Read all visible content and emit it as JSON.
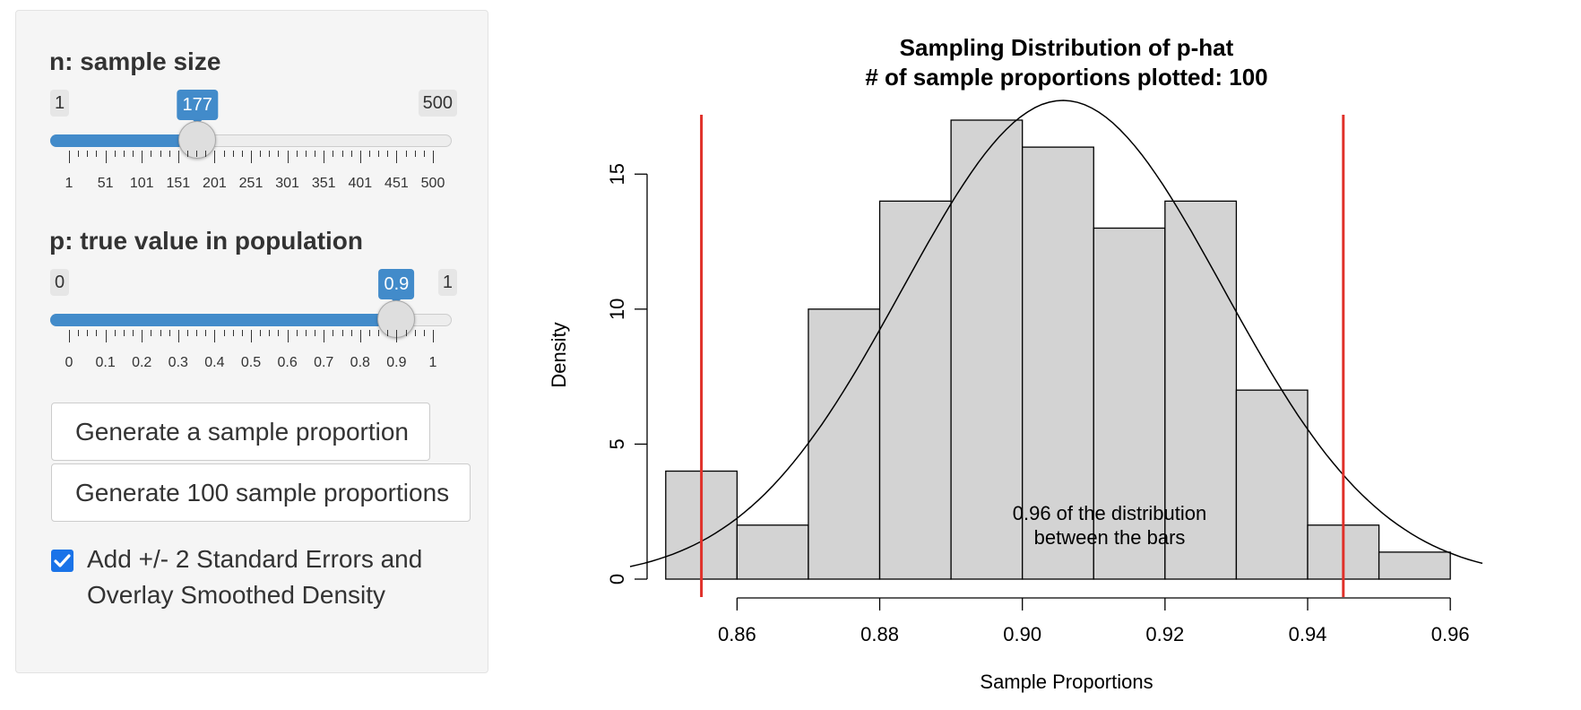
{
  "sidebar": {
    "n_slider": {
      "label": "n: sample size",
      "min_label": "1",
      "max_label": "500",
      "value": 177,
      "value_label": "177",
      "min": 1,
      "max": 500,
      "tick_labels": [
        "1",
        "51",
        "101",
        "151",
        "201",
        "251",
        "301",
        "351",
        "401",
        "451",
        "500"
      ]
    },
    "p_slider": {
      "label": "p: true value in population",
      "min_label": "0",
      "max_label": "1",
      "value": 0.9,
      "value_label": "0.9",
      "min": 0,
      "max": 1,
      "tick_labels": [
        "0",
        "0.1",
        "0.2",
        "0.3",
        "0.4",
        "0.5",
        "0.6",
        "0.7",
        "0.8",
        "0.9",
        "1"
      ]
    },
    "buttons": {
      "generate_one": "Generate a sample proportion",
      "generate_100": "Generate 100 sample proportions"
    },
    "checkbox": {
      "checked": true,
      "line1": "Add +/- 2 Standard Errors and",
      "line2": "Overlay Smoothed Density"
    }
  },
  "colors": {
    "accent": "#428bca",
    "checkbox": "#1a73e8",
    "bar_fill": "#d3d3d3",
    "ref_lines": "#e0312a"
  },
  "chart_data": {
    "type": "bar",
    "title": "Sampling Distribution of p-hat",
    "subtitle": "# of sample proportions plotted: 100",
    "xlabel": "Sample Proportions",
    "ylabel": "Density",
    "bins": [
      {
        "from": 0.85,
        "to": 0.86,
        "density": 4
      },
      {
        "from": 0.86,
        "to": 0.87,
        "density": 2
      },
      {
        "from": 0.87,
        "to": 0.88,
        "density": 10
      },
      {
        "from": 0.88,
        "to": 0.89,
        "density": 14
      },
      {
        "from": 0.89,
        "to": 0.9,
        "density": 17
      },
      {
        "from": 0.9,
        "to": 0.91,
        "density": 16
      },
      {
        "from": 0.91,
        "to": 0.92,
        "density": 13
      },
      {
        "from": 0.92,
        "to": 0.93,
        "density": 14
      },
      {
        "from": 0.93,
        "to": 0.94,
        "density": 7
      },
      {
        "from": 0.94,
        "to": 0.95,
        "density": 2
      },
      {
        "from": 0.95,
        "to": 0.96,
        "density": 1
      }
    ],
    "xlim": [
      0.845,
      0.964
    ],
    "ylim": [
      0,
      17
    ],
    "x_ticks": [
      0.86,
      0.88,
      0.9,
      0.92,
      0.94,
      0.96
    ],
    "x_tick_labels": [
      "0.86",
      "0.88",
      "0.90",
      "0.92",
      "0.94",
      "0.96"
    ],
    "y_ticks": [
      0,
      5,
      10,
      15
    ],
    "y_tick_labels": [
      "0",
      "5",
      "10",
      "15"
    ],
    "vlines": [
      0.855,
      0.945
    ],
    "density_curve": {
      "mean": 0.9057,
      "sd": 0.0225,
      "x_from": 0.845,
      "x_to": 0.9645
    },
    "annotation": [
      "0.96 of the distribution",
      "between the bars"
    ]
  }
}
